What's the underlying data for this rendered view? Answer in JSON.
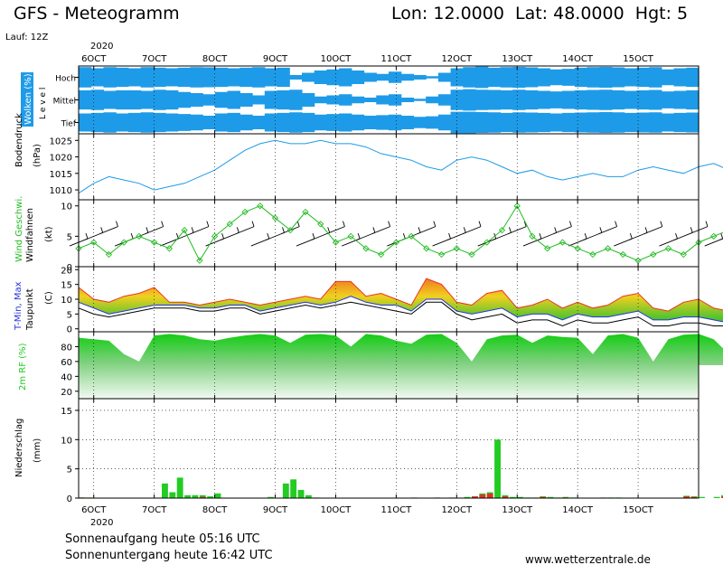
{
  "header": {
    "title": "GFS - Meteogramm",
    "location": "Lon: 12.0000  Lat: 48.0000  Hgt: 5",
    "run": "Lauf: 12Z"
  },
  "axis": {
    "year_top": "2020",
    "year_bottom": "2020",
    "date_labels": [
      "6OCT",
      "7OCT",
      "8OCT",
      "9OCT",
      "10OCT",
      "11OCT",
      "12OCT",
      "13OCT",
      "14OCT",
      "15OCT"
    ]
  },
  "footer": {
    "sunrise": "Sonnenaufgang heute 05:16 UTC",
    "sunset": "Sonnenuntergang heute 16:42 UTC",
    "site": "www.wetterzentrale.de"
  },
  "colors": {
    "cloud": "#1e9be8",
    "pressure_line": "#1e9be8",
    "wind_line": "#22bb22",
    "tmax": "#ee3322",
    "tmin": "#2233dd",
    "rh": "#22cc22",
    "precip": "#22cc22",
    "precip_conv": "#dd3322"
  },
  "chart_data": [
    {
      "type": "heatmap",
      "panel": "Wolken",
      "ylabel_parts": [
        "Wolken (%)",
        "L e v e l"
      ],
      "levels": [
        "Hoch",
        "Mittel",
        "Tief"
      ],
      "x_start": "2020-10-05 18Z",
      "step_hours": 6,
      "hoch": [
        90,
        80,
        90,
        85,
        80,
        90,
        85,
        80,
        85,
        90,
        88,
        85,
        80,
        85,
        90,
        80,
        85,
        20,
        40,
        60,
        70,
        80,
        60,
        40,
        30,
        50,
        30,
        20,
        10,
        40,
        80,
        90,
        95,
        85,
        90,
        92,
        88,
        80,
        70,
        75,
        85,
        90,
        92,
        88,
        80,
        85,
        90,
        70,
        80,
        85
      ],
      "mittel": [
        85,
        90,
        80,
        85,
        85,
        80,
        90,
        85,
        70,
        60,
        50,
        70,
        80,
        60,
        40,
        80,
        85,
        90,
        60,
        30,
        40,
        50,
        30,
        20,
        40,
        50,
        20,
        10,
        30,
        50,
        90,
        95,
        90,
        88,
        85,
        90,
        85,
        80,
        75,
        80,
        85,
        88,
        90,
        85,
        80,
        85,
        88,
        75,
        80,
        85
      ],
      "tief": [
        80,
        85,
        90,
        80,
        85,
        90,
        85,
        80,
        75,
        70,
        60,
        80,
        85,
        70,
        60,
        80,
        85,
        90,
        85,
        70,
        75,
        80,
        70,
        60,
        65,
        70,
        60,
        50,
        55,
        70,
        95,
        95,
        92,
        90,
        85,
        90,
        88,
        85,
        80,
        85,
        88,
        90,
        92,
        90,
        85,
        88,
        90,
        80,
        85,
        88
      ]
    },
    {
      "type": "line",
      "panel": "Bodendruck",
      "ylabel": "Bodendruck",
      "unit": "(hPa)",
      "ylim": [
        1007,
        1027
      ],
      "yticks": [
        1010,
        1015,
        1020,
        1025
      ],
      "x_start": "2020-10-05 18Z",
      "step_hours": 6,
      "values": [
        1009,
        1012,
        1014,
        1013,
        1012,
        1010,
        1011,
        1012,
        1014,
        1016,
        1019,
        1022,
        1024,
        1025,
        1024,
        1024,
        1025,
        1024,
        1024,
        1023,
        1021,
        1020,
        1019,
        1017,
        1016,
        1019,
        1020,
        1019,
        1017,
        1015,
        1016,
        1014,
        1013,
        1014,
        1015,
        1014,
        1014,
        1016,
        1017,
        1016,
        1015,
        1017,
        1018,
        1016,
        1015,
        1017,
        1019,
        1021,
        1022,
        1021
      ]
    },
    {
      "type": "line",
      "panel": "Wind",
      "ylabel": "Wind Geschwi.",
      "ylabel2": "Windfahnen",
      "unit": "(kt)",
      "ylim": [
        0,
        11
      ],
      "yticks": [
        0,
        5,
        10
      ],
      "x_start": "2020-10-05 18Z",
      "step_hours": 6,
      "values": [
        3,
        4,
        2,
        4,
        5,
        4,
        3,
        6,
        1,
        5,
        7,
        9,
        10,
        8,
        6,
        9,
        7,
        4,
        5,
        3,
        2,
        4,
        5,
        3,
        2,
        3,
        2,
        4,
        6,
        10,
        5,
        3,
        4,
        3,
        2,
        3,
        2,
        1,
        2,
        3,
        2,
        4,
        5,
        6,
        5,
        4,
        3,
        1,
        3,
        5
      ]
    },
    {
      "type": "area",
      "panel": "Temperatur",
      "ylabel": "T-Min, Max",
      "ylabel2": "Taupunkt",
      "unit": "(C)",
      "ylim": [
        -1,
        21
      ],
      "yticks": [
        0,
        5,
        10,
        15,
        20
      ],
      "x_start": "2020-10-05 18Z",
      "step_hours": 6,
      "series": [
        {
          "name": "Max",
          "values": [
            14,
            10,
            9,
            11,
            12,
            14,
            9,
            9,
            8,
            9,
            10,
            9,
            8,
            9,
            10,
            11,
            10,
            16,
            16,
            11,
            12,
            10,
            8,
            17,
            15,
            9,
            8,
            12,
            13,
            7,
            8,
            10,
            7,
            9,
            7,
            8,
            11,
            12,
            7,
            6,
            9,
            10,
            7,
            6,
            8,
            12,
            7,
            4,
            3,
            8
          ]
        },
        {
          "name": "Min",
          "values": [
            9,
            7,
            5,
            6,
            7,
            8,
            8,
            8,
            7,
            7,
            8,
            8,
            6,
            7,
            8,
            9,
            8,
            9,
            11,
            9,
            8,
            8,
            6,
            10,
            10,
            6,
            5,
            6,
            7,
            4,
            5,
            5,
            3,
            5,
            4,
            4,
            5,
            6,
            3,
            3,
            4,
            4,
            3,
            2,
            3,
            5,
            3,
            2,
            2,
            3
          ]
        },
        {
          "name": "Taupunkt",
          "values": [
            7,
            5,
            4,
            5,
            6,
            7,
            7,
            7,
            6,
            6,
            7,
            7,
            5,
            6,
            7,
            8,
            7,
            8,
            9,
            8,
            7,
            6,
            5,
            9,
            9,
            5,
            3,
            4,
            5,
            2,
            3,
            3,
            1,
            3,
            2,
            2,
            3,
            4,
            1,
            1,
            2,
            2,
            1,
            1,
            2,
            3,
            2,
            1,
            1,
            2
          ]
        }
      ]
    },
    {
      "type": "area",
      "panel": "Feuchte",
      "ylabel": "2m RF (%)",
      "ylim": [
        10,
        100
      ],
      "yticks": [
        20,
        40,
        60,
        80
      ],
      "x_start": "2020-10-05 18Z",
      "step_hours": 6,
      "values": [
        92,
        90,
        88,
        70,
        60,
        95,
        97,
        95,
        90,
        88,
        92,
        95,
        97,
        95,
        85,
        96,
        97,
        95,
        80,
        97,
        95,
        88,
        84,
        96,
        97,
        85,
        60,
        90,
        95,
        96,
        85,
        95,
        93,
        92,
        70,
        95,
        97,
        92,
        60,
        90,
        96,
        97,
        90,
        70,
        97,
        98,
        97,
        90,
        75,
        55
      ]
    },
    {
      "type": "bar",
      "panel": "Niederschlag",
      "ylabel": "Niederschlag",
      "unit": "(mm)",
      "ylim": [
        0,
        17
      ],
      "yticks": [
        0,
        5,
        10,
        15
      ],
      "x_start": "2020-10-05 18Z",
      "step_hours": 6,
      "series": [
        {
          "name": "total",
          "values": [
            0.1,
            0.1,
            0,
            0,
            0,
            0,
            0,
            0,
            0,
            0,
            0,
            2.5,
            1,
            3.5,
            0.5,
            0.5,
            0.5,
            0.3,
            0.8,
            0,
            0,
            0,
            0,
            0,
            0,
            0.2,
            0,
            2.5,
            3.2,
            1.4,
            0.5,
            0.1,
            0,
            0,
            0,
            0,
            0,
            0,
            0,
            0,
            0,
            0,
            0,
            0,
            0.1,
            0,
            0,
            0.1,
            0,
            0.1,
            0,
            0.2,
            0.3,
            0.8,
            1.0,
            10,
            0.5,
            0.2,
            0.2,
            0.1,
            0.1,
            0.3,
            0.2,
            0.1,
            0.2,
            0.1,
            0,
            0,
            0,
            0.1,
            0.1,
            0.1,
            0,
            0,
            0,
            0,
            0,
            0,
            0,
            0,
            0.4,
            0.3,
            0.2,
            0,
            0.2,
            0.5,
            0.3,
            0,
            0,
            0.1,
            0.2,
            0.1,
            0,
            0,
            0,
            0,
            0,
            0,
            0
          ]
        },
        {
          "name": "konvektiv",
          "values": [
            0.1,
            0,
            0,
            0,
            0,
            0,
            0,
            0,
            0,
            0,
            0,
            0,
            0,
            0,
            0,
            0,
            0.2,
            0,
            0,
            0,
            0,
            0,
            0,
            0,
            0,
            0,
            0,
            0,
            0,
            0,
            0,
            0,
            0,
            0,
            0,
            0,
            0,
            0,
            0,
            0,
            0,
            0,
            0,
            0,
            0,
            0,
            0,
            0,
            0,
            0,
            0,
            0,
            0.3,
            0.6,
            0.8,
            0,
            0.3,
            0,
            0,
            0,
            0,
            0.2,
            0,
            0,
            0.1,
            0,
            0,
            0,
            0,
            0,
            0,
            0,
            0,
            0,
            0,
            0,
            0,
            0,
            0,
            0,
            0.3,
            0.2,
            0,
            0,
            0,
            0.3,
            0,
            0,
            0,
            0,
            0,
            0,
            0,
            0,
            0,
            0,
            0,
            0,
            0
          ]
        }
      ]
    }
  ]
}
